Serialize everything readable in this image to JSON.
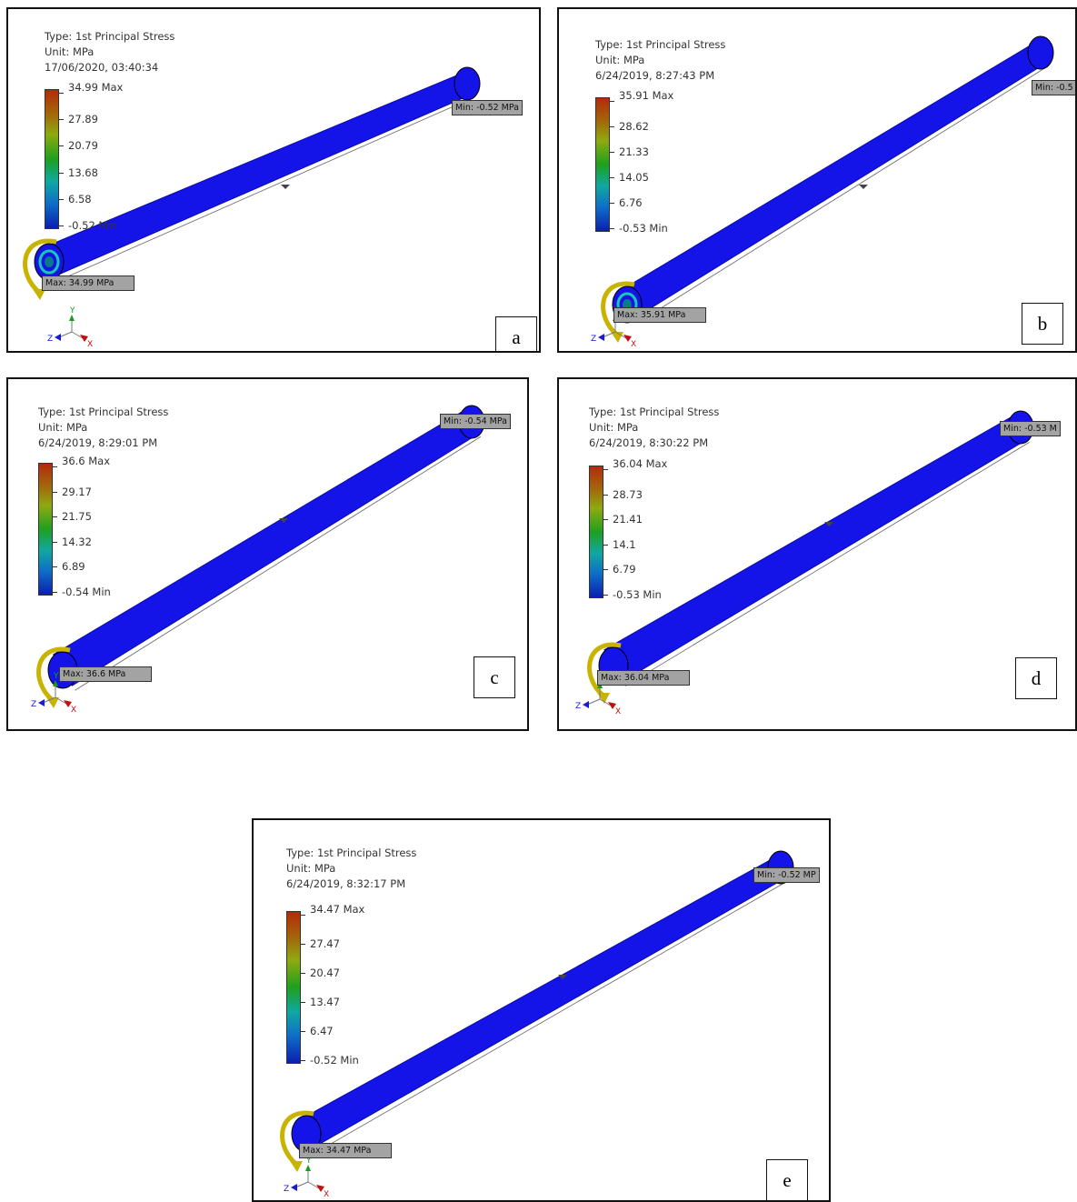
{
  "panels": [
    {
      "id": "a",
      "type_label": "Type: 1st Principal Stress",
      "unit_label": "Unit: MPa",
      "timestamp": "17/06/2020, 03:40:34",
      "scale": [
        "34.99 Max",
        "27.89",
        "20.79",
        "13.68",
        "6.58",
        "-0.52 Min"
      ],
      "min_tag": "Min: -0.52 MPa",
      "max_tag": "Max: 34.99 MPa",
      "letter": "a"
    },
    {
      "id": "b",
      "type_label": "Type: 1st Principal Stress",
      "unit_label": "Unit: MPa",
      "timestamp": "6/24/2019, 8:27:43 PM",
      "scale": [
        "35.91 Max",
        "28.62",
        "21.33",
        "14.05",
        "6.76",
        "-0.53 Min"
      ],
      "min_tag": "Min: -0.5",
      "max_tag": "Max: 35.91 MPa",
      "letter": "b"
    },
    {
      "id": "c",
      "type_label": "Type: 1st Principal Stress",
      "unit_label": "Unit: MPa",
      "timestamp": "6/24/2019, 8:29:01 PM",
      "scale": [
        "36.6 Max",
        "29.17",
        "21.75",
        "14.32",
        "6.89",
        "-0.54 Min"
      ],
      "min_tag": "Min: -0.54 MPa",
      "max_tag": "Max: 36.6 MPa",
      "letter": "c"
    },
    {
      "id": "d",
      "type_label": "Type: 1st Principal Stress",
      "unit_label": "Unit: MPa",
      "timestamp": "6/24/2019, 8:30:22 PM",
      "scale": [
        "36.04 Max",
        "28.73",
        "21.41",
        "14.1",
        "6.79",
        "-0.53 Min"
      ],
      "min_tag": "Min: -0.53 M",
      "max_tag": "Max: 36.04 MPa",
      "letter": "d"
    },
    {
      "id": "e",
      "type_label": "Type: 1st Principal Stress",
      "unit_label": "Unit: MPa",
      "timestamp": "6/24/2019, 8:32:17 PM",
      "scale": [
        "34.47 Max",
        "27.47",
        "20.47",
        "13.47",
        "6.47",
        "-0.52 Min"
      ],
      "min_tag": "Min: -0.52 MP",
      "max_tag": "Max: 34.47 MPa",
      "letter": "e"
    }
  ],
  "axis_labels": {
    "x": "X",
    "y": "Y",
    "z": "Z"
  },
  "colors": {
    "shaft": "#1414e8",
    "shaft_dark": "#0a0aa8",
    "moment": "#c8b400",
    "scale_top": "#b52a0c",
    "scale_bottom": "#0a1fb0"
  }
}
